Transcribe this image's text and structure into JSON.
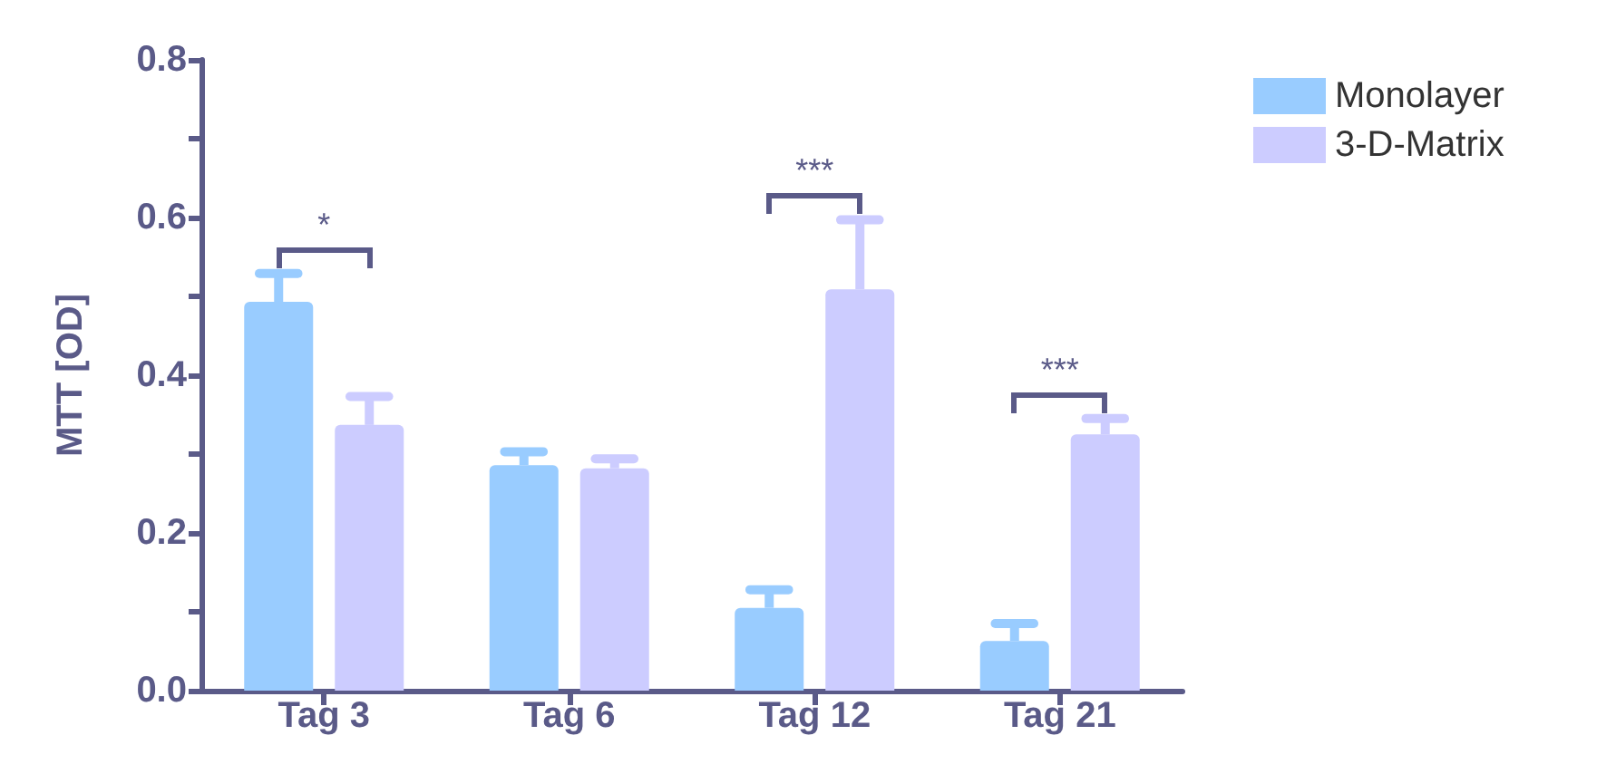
{
  "chart_data": {
    "type": "bar",
    "ylabel": "MTT [OD]",
    "categories": [
      "Tag 3",
      "Tag 6",
      "Tag 12",
      "Tag 21"
    ],
    "series": [
      {
        "name": "Monolayer",
        "color": "#99ccff",
        "values": [
          0.493,
          0.286,
          0.105,
          0.063
        ],
        "errors": [
          [
            0.493,
            0.529
          ],
          [
            0.286,
            0.303
          ],
          [
            0.105,
            0.128
          ],
          [
            0.063,
            0.085
          ]
        ]
      },
      {
        "name": "3-D-Matrix",
        "color": "#ccccff",
        "values": [
          0.337,
          0.282,
          0.509,
          0.325
        ],
        "errors": [
          [
            0.337,
            0.373
          ],
          [
            0.282,
            0.294
          ],
          [
            0.509,
            0.597
          ],
          [
            0.325,
            0.345
          ]
        ]
      }
    ],
    "ylim": [
      0,
      0.8
    ],
    "yticks": [
      {
        "value": 0,
        "label": "0.0"
      },
      {
        "value": 0.1,
        "label": null
      },
      {
        "value": 0.2,
        "label": "0.2"
      },
      {
        "value": 0.3,
        "label": null
      },
      {
        "value": 0.4,
        "label": "0.4"
      },
      {
        "value": 0.5,
        "label": null
      },
      {
        "value": 0.6,
        "label": "0.6"
      },
      {
        "value": 0.7,
        "label": null
      },
      {
        "value": 0.8,
        "label": "0.8"
      }
    ],
    "annotations": [
      "*",
      "***",
      "***"
    ],
    "grid": false,
    "legend": "top right"
  }
}
